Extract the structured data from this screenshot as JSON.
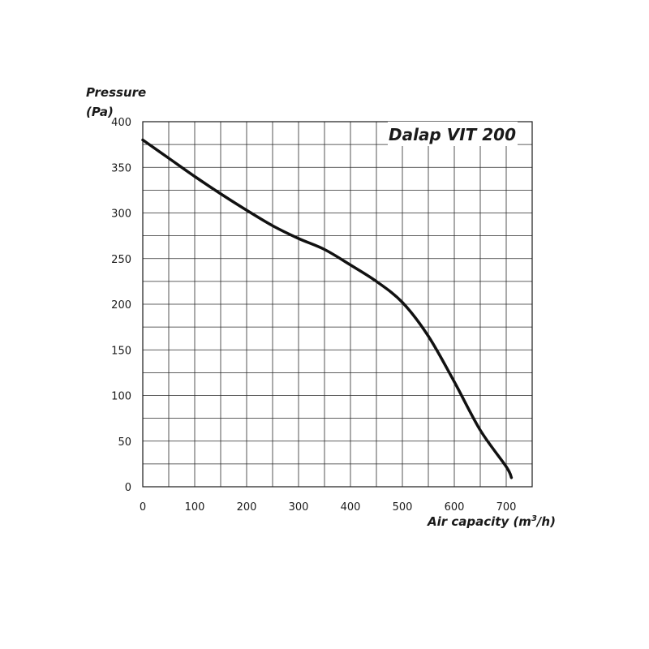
{
  "chart_data": {
    "type": "line",
    "title": "Dalap VIT 200",
    "ylabel_line1": "Pressure",
    "ylabel_line2": "(Pa)",
    "xlabel_main": "Air capacity (m",
    "xlabel_sup": "3",
    "xlabel_end": "/h)",
    "xlim": [
      0,
      750
    ],
    "ylim": [
      0,
      400
    ],
    "x_grid_step": 50,
    "y_grid_step": 25,
    "x_ticks": [
      0,
      100,
      200,
      300,
      400,
      500,
      600,
      700
    ],
    "y_ticks": [
      0,
      50,
      100,
      150,
      200,
      250,
      300,
      350,
      400
    ],
    "grid": true,
    "series": [
      {
        "x": [
          0,
          50,
          100,
          150,
          200,
          250,
          300,
          350,
          400,
          450,
          500,
          550,
          600,
          650,
          700,
          710
        ],
        "y": [
          380,
          360,
          340,
          321,
          303,
          286,
          272,
          260,
          243,
          225,
          202,
          165,
          115,
          62,
          22,
          10
        ],
        "color": "#111111"
      }
    ]
  }
}
